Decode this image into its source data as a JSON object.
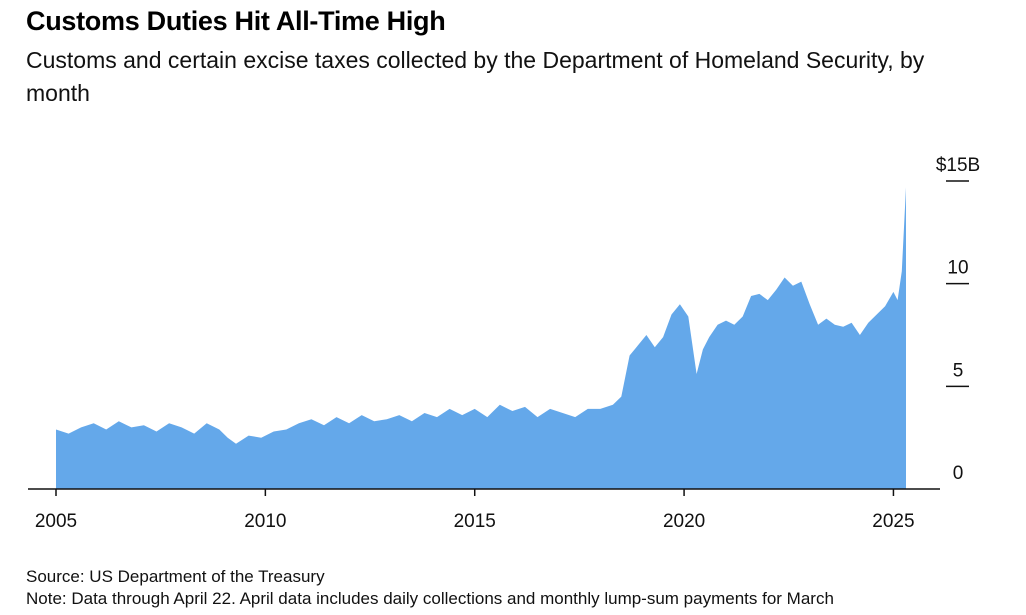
{
  "header": {
    "title": "Customs Duties Hit All-Time High",
    "subtitle": "Customs and certain excise taxes collected by the Department of Homeland Security, by month"
  },
  "footer": {
    "source": "Source: US Department of the Treasury",
    "note": "Note: Data through April 22. April data includes daily collections and monthly lump-sum payments for March"
  },
  "colors": {
    "area_fill": "#64a8ea",
    "axis": "#111111"
  },
  "chart_data": {
    "type": "area",
    "title": "Customs Duties Hit All-Time High",
    "subtitle": "Customs and certain excise taxes collected by the Department of Homeland Security, by month",
    "xlabel": "",
    "ylabel": "",
    "x_range": [
      2005,
      2026.2
    ],
    "ylim": [
      0,
      15
    ],
    "x_ticks": [
      {
        "value": 2005,
        "label": "2005"
      },
      {
        "value": 2010,
        "label": "2010"
      },
      {
        "value": 2015,
        "label": "2015"
      },
      {
        "value": 2020,
        "label": "2020"
      },
      {
        "value": 2025,
        "label": "2025"
      }
    ],
    "y_ticks": [
      {
        "value": 15,
        "label": "$15B"
      },
      {
        "value": 10,
        "label": "10"
      },
      {
        "value": 5,
        "label": "5"
      },
      {
        "value": 0,
        "label": "0"
      }
    ],
    "y_axis_position": "right",
    "grid": false,
    "legend": "none",
    "series": [
      {
        "points": [
          [
            2005.0,
            2.9
          ],
          [
            2005.3,
            2.7
          ],
          [
            2005.6,
            3.0
          ],
          [
            2005.9,
            3.2
          ],
          [
            2006.2,
            2.9
          ],
          [
            2006.5,
            3.3
          ],
          [
            2006.8,
            3.0
          ],
          [
            2007.1,
            3.1
          ],
          [
            2007.4,
            2.8
          ],
          [
            2007.7,
            3.2
          ],
          [
            2008.0,
            3.0
          ],
          [
            2008.3,
            2.7
          ],
          [
            2008.6,
            3.2
          ],
          [
            2008.9,
            2.9
          ],
          [
            2009.1,
            2.5
          ],
          [
            2009.3,
            2.2
          ],
          [
            2009.6,
            2.6
          ],
          [
            2009.9,
            2.5
          ],
          [
            2010.2,
            2.8
          ],
          [
            2010.5,
            2.9
          ],
          [
            2010.8,
            3.2
          ],
          [
            2011.1,
            3.4
          ],
          [
            2011.4,
            3.1
          ],
          [
            2011.7,
            3.5
          ],
          [
            2012.0,
            3.2
          ],
          [
            2012.3,
            3.6
          ],
          [
            2012.6,
            3.3
          ],
          [
            2012.9,
            3.4
          ],
          [
            2013.2,
            3.6
          ],
          [
            2013.5,
            3.3
          ],
          [
            2013.8,
            3.7
          ],
          [
            2014.1,
            3.5
          ],
          [
            2014.4,
            3.9
          ],
          [
            2014.7,
            3.6
          ],
          [
            2015.0,
            3.9
          ],
          [
            2015.3,
            3.5
          ],
          [
            2015.6,
            4.1
          ],
          [
            2015.9,
            3.8
          ],
          [
            2016.2,
            4.0
          ],
          [
            2016.5,
            3.5
          ],
          [
            2016.8,
            3.9
          ],
          [
            2017.1,
            3.7
          ],
          [
            2017.4,
            3.5
          ],
          [
            2017.7,
            3.9
          ],
          [
            2018.0,
            3.9
          ],
          [
            2018.3,
            4.1
          ],
          [
            2018.5,
            4.5
          ],
          [
            2018.7,
            6.5
          ],
          [
            2018.9,
            7.0
          ],
          [
            2019.1,
            7.5
          ],
          [
            2019.3,
            6.9
          ],
          [
            2019.5,
            7.4
          ],
          [
            2019.7,
            8.5
          ],
          [
            2019.9,
            9.0
          ],
          [
            2020.1,
            8.4
          ],
          [
            2020.3,
            5.6
          ],
          [
            2020.45,
            6.8
          ],
          [
            2020.6,
            7.4
          ],
          [
            2020.8,
            8.0
          ],
          [
            2021.0,
            8.2
          ],
          [
            2021.2,
            8.0
          ],
          [
            2021.4,
            8.4
          ],
          [
            2021.6,
            9.4
          ],
          [
            2021.8,
            9.5
          ],
          [
            2022.0,
            9.2
          ],
          [
            2022.2,
            9.7
          ],
          [
            2022.4,
            10.3
          ],
          [
            2022.6,
            9.9
          ],
          [
            2022.8,
            10.1
          ],
          [
            2023.0,
            9.0
          ],
          [
            2023.2,
            8.0
          ],
          [
            2023.4,
            8.3
          ],
          [
            2023.6,
            8.0
          ],
          [
            2023.8,
            7.9
          ],
          [
            2024.0,
            8.1
          ],
          [
            2024.2,
            7.5
          ],
          [
            2024.4,
            8.1
          ],
          [
            2024.6,
            8.5
          ],
          [
            2024.8,
            8.9
          ],
          [
            2025.0,
            9.6
          ],
          [
            2025.1,
            9.2
          ],
          [
            2025.2,
            10.6
          ],
          [
            2025.3,
            14.7
          ]
        ]
      }
    ]
  }
}
